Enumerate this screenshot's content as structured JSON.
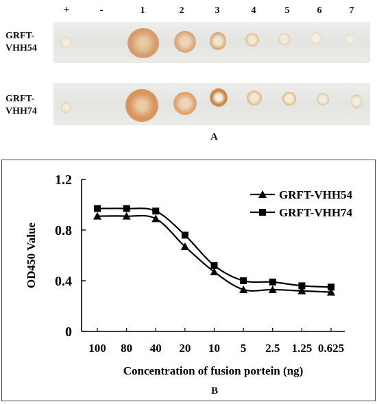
{
  "panelA": {
    "lane_labels": [
      "+",
      "-",
      "1",
      "2",
      "3",
      "4",
      "5",
      "6",
      "7"
    ],
    "rows": [
      {
        "label_line1": "GRFT-",
        "label_line2": "VHH54"
      },
      {
        "label_line1": "GRFT-",
        "label_line2": "VHH74"
      }
    ],
    "panel_letter": "A"
  },
  "panelB": {
    "panel_letter": "B"
  },
  "chart_data": {
    "type": "line",
    "categories": [
      "100",
      "80",
      "40",
      "20",
      "10",
      "5",
      "2.5",
      "1.25",
      "0.625"
    ],
    "series": [
      {
        "name": "GRFT-VHH54",
        "marker": "triangle",
        "values": [
          0.91,
          0.91,
          0.89,
          0.67,
          0.47,
          0.33,
          0.33,
          0.32,
          0.31
        ]
      },
      {
        "name": "GRFT-VHH74",
        "marker": "square",
        "values": [
          0.97,
          0.97,
          0.95,
          0.76,
          0.52,
          0.4,
          0.39,
          0.36,
          0.35
        ]
      }
    ],
    "xlabel": "Concentration of fusion portein (ng)",
    "ylabel": "OD450 Value",
    "ylim": [
      0,
      1.2
    ],
    "yticks": [
      "0",
      "0.4",
      "0.8",
      "1.2"
    ],
    "legend": "top-right",
    "grid": false,
    "color": "#000000"
  }
}
